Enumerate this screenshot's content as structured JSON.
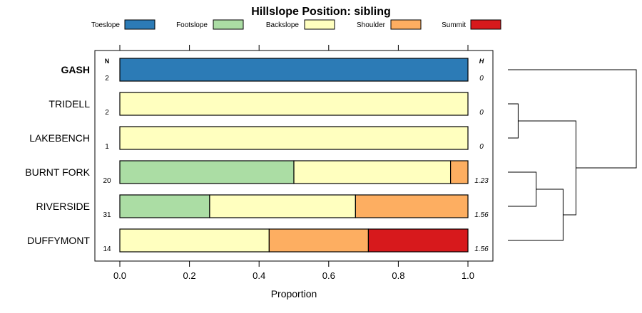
{
  "chart_data": {
    "type": "bar",
    "orientation": "horizontal",
    "stacked": true,
    "title": "Hillslope Position: sibling",
    "xlabel": "Proportion",
    "xlim": [
      0,
      1
    ],
    "x_ticks": [
      "0.0",
      "0.2",
      "0.4",
      "0.6",
      "0.8",
      "1.0"
    ],
    "legend_position": "top",
    "left_header": "N",
    "right_header": "H",
    "categories": [
      "GASH",
      "TRIDELL",
      "LAKEBENCH",
      "BURNT FORK",
      "RIVERSIDE",
      "DUFFYMONT"
    ],
    "highlighted_category": "GASH",
    "n_values": [
      "2",
      "2",
      "1",
      "20",
      "31",
      "14"
    ],
    "h_values": [
      "0",
      "0",
      "0",
      "1.23",
      "1.56",
      "1.56"
    ],
    "series": [
      {
        "name": "Toeslope",
        "color": "#2c7bb6",
        "values": [
          1,
          0,
          0,
          0,
          0,
          0
        ]
      },
      {
        "name": "Footslope",
        "color": "#abdda4",
        "values": [
          0,
          0,
          0,
          0.5,
          0.258,
          0
        ]
      },
      {
        "name": "Backslope",
        "color": "#ffffbf",
        "values": [
          0,
          1,
          1,
          0.45,
          0.419,
          0.429
        ]
      },
      {
        "name": "Shoulder",
        "color": "#fdae61",
        "values": [
          0,
          0,
          0,
          0.05,
          0.323,
          0.285
        ]
      },
      {
        "name": "Summit",
        "color": "#d7191c",
        "values": [
          0,
          0,
          0,
          0,
          0,
          0.286
        ]
      }
    ],
    "dendrogram": {
      "merges": [
        {
          "a": 1,
          "b": 2,
          "height": 0.08
        },
        {
          "a": 3,
          "b": 4,
          "height": 0.22
        },
        {
          "a": "m1",
          "b": 5,
          "height": 0.43
        },
        {
          "a": "m0",
          "b": "m2",
          "height": 0.53
        },
        {
          "a": 0,
          "b": "m3",
          "height": 1.0
        }
      ]
    }
  }
}
